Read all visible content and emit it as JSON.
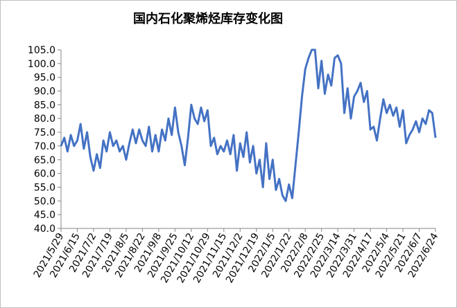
{
  "chart_data": {
    "type": "line",
    "title": "国内石化聚烯烃库存变化图",
    "categories": [
      "2021/5/29",
      null,
      null,
      null,
      null,
      "2021/6/15",
      null,
      null,
      null,
      null,
      "2021/7/2",
      null,
      null,
      null,
      null,
      "2021/7/19",
      null,
      null,
      null,
      null,
      "2021/8/5",
      null,
      null,
      null,
      null,
      "2021/8/22",
      null,
      null,
      null,
      null,
      "2021/9/8",
      null,
      null,
      null,
      null,
      "2021/9/25",
      null,
      null,
      null,
      null,
      "2021/10/12",
      null,
      null,
      null,
      null,
      "2021/10/29",
      null,
      null,
      null,
      null,
      "2021/11/15",
      null,
      null,
      null,
      null,
      "2021/12/2",
      null,
      null,
      null,
      null,
      "2021/12/19",
      null,
      null,
      null,
      null,
      "2022/1/5",
      null,
      null,
      null,
      null,
      "2022/1/22",
      null,
      null,
      null,
      null,
      "2022/2/8",
      null,
      null,
      null,
      null,
      "2022/2/25",
      null,
      null,
      null,
      null,
      "2022/3/14",
      null,
      null,
      null,
      null,
      "2022/3/31",
      null,
      null,
      null,
      null,
      "2022/4/17",
      null,
      null,
      null,
      null,
      "2022/5/4",
      null,
      null,
      null,
      null,
      "2022/5/21",
      null,
      null,
      null,
      null,
      "2022/6/7",
      null,
      null,
      null,
      null,
      "2022/6/24"
    ],
    "series": [
      {
        "color": "#4472c4",
        "values": [
          70,
          73,
          68,
          74,
          70,
          72,
          78,
          69,
          75,
          66,
          61,
          67,
          62,
          72,
          68,
          75,
          70,
          72,
          68,
          70,
          65,
          71,
          76,
          71,
          76,
          72,
          70,
          77,
          68,
          74,
          68,
          76,
          72,
          80,
          74,
          84,
          75,
          70,
          63,
          73,
          85,
          80,
          78,
          84,
          79,
          83,
          70,
          73,
          67,
          70,
          68,
          72,
          67,
          74,
          61,
          71,
          66,
          75,
          64,
          70,
          60,
          65,
          55,
          71,
          58,
          65,
          54,
          58,
          52,
          50,
          56,
          51,
          63,
          75,
          88,
          98,
          102,
          105,
          105,
          91,
          101,
          89,
          96,
          92,
          102,
          103,
          100,
          82,
          91,
          80,
          88,
          90,
          93,
          86,
          90,
          76,
          77,
          72,
          80,
          87,
          82,
          85,
          81,
          84,
          77,
          83,
          71,
          74,
          76,
          79,
          75,
          80,
          78,
          83,
          82,
          73
        ]
      }
    ],
    "ylim": [
      40,
      105
    ],
    "yticks": [
      {
        "value": 40,
        "label": "40.0"
      },
      {
        "value": 45,
        "label": "45.0"
      },
      {
        "value": 50,
        "label": "50.0"
      },
      {
        "value": 55,
        "label": "55.0"
      },
      {
        "value": 60,
        "label": "60.0"
      },
      {
        "value": 65,
        "label": "65.0"
      },
      {
        "value": 70,
        "label": "70.0"
      },
      {
        "value": 75,
        "label": "75.0"
      },
      {
        "value": 80,
        "label": "80.0"
      },
      {
        "value": 85,
        "label": "85.0"
      },
      {
        "value": 90,
        "label": "90.0"
      },
      {
        "value": 95,
        "label": "95.0"
      },
      {
        "value": 100,
        "label": "100.0"
      },
      {
        "value": 105,
        "label": "105.0"
      }
    ],
    "grid": false
  }
}
